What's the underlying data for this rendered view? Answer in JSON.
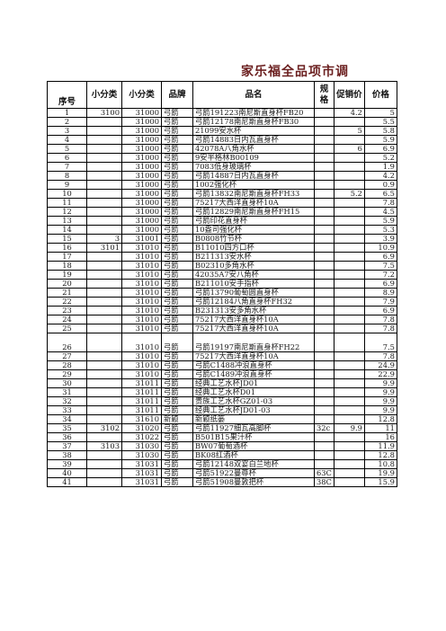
{
  "title": "家乐福全品项市调",
  "headers": {
    "seq": "序号",
    "sub1": "小分类",
    "sub2": "小分类",
    "brand": "品牌",
    "name": "品名",
    "spec": "规格",
    "promo": "促销价",
    "price": "价格"
  },
  "rows": [
    {
      "seq": "1",
      "c1": "3100",
      "c2": "31000",
      "brand": "弓箭",
      "name": "弓箭191223南尼斯直身杯FB20",
      "spec": "",
      "promo": "4.2",
      "price": "5"
    },
    {
      "seq": "2",
      "c1": "",
      "c2": "31000",
      "brand": "弓箭",
      "name": "弓箭12178南尼斯直身杯FB30",
      "spec": "",
      "promo": "",
      "price": "5.5"
    },
    {
      "seq": "3",
      "c1": "",
      "c2": "31000",
      "brand": "弓箭",
      "name": "21099安水杯",
      "spec": "",
      "promo": "5",
      "price": "5.8"
    },
    {
      "seq": "4",
      "c1": "",
      "c2": "31000",
      "brand": "弓箭",
      "name": "弓箭14883日内瓦直身杯",
      "spec": "",
      "promo": "",
      "price": "5.9"
    },
    {
      "seq": "5",
      "c1": "",
      "c2": "31000",
      "brand": "弓箭",
      "name": "42078A八角水杯",
      "spec": "",
      "promo": "6",
      "price": "6.9"
    },
    {
      "seq": "6",
      "c1": "",
      "c2": "31000",
      "brand": "弓箭",
      "name": "9安半格林B00109",
      "spec": "",
      "promo": "",
      "price": "5.2"
    },
    {
      "seq": "7",
      "c1": "",
      "c2": "31000",
      "brand": "弓箭",
      "name": "7083低身玻璃杯",
      "spec": "",
      "promo": "",
      "price": "1.9"
    },
    {
      "seq": "8",
      "c1": "",
      "c2": "31000",
      "brand": "弓箭",
      "name": "弓箭14887日内瓦直身杯",
      "spec": "",
      "promo": "",
      "price": "4.2"
    },
    {
      "seq": "9",
      "c1": "",
      "c2": "31000",
      "brand": "弓箭",
      "name": "1002强化杯",
      "spec": "",
      "promo": "",
      "price": "0.9"
    },
    {
      "seq": "10",
      "c1": "",
      "c2": "31000",
      "brand": "弓箭",
      "name": "弓箭13832南尼斯直身杯FH33",
      "spec": "",
      "promo": "5.2",
      "price": "6.5"
    },
    {
      "seq": "11",
      "c1": "",
      "c2": "31000",
      "brand": "弓箭",
      "name": "75217大西洋直身杯10A",
      "spec": "",
      "promo": "",
      "price": "7.8"
    },
    {
      "seq": "12",
      "c1": "",
      "c2": "31000",
      "brand": "弓箭",
      "name": "弓箭12829南尼斯直身杯FH15",
      "spec": "",
      "promo": "",
      "price": "4.5"
    },
    {
      "seq": "13",
      "c1": "",
      "c2": "31000",
      "brand": "弓箭",
      "name": "弓箭印花直身杯",
      "spec": "",
      "promo": "",
      "price": "5.9"
    },
    {
      "seq": "14",
      "c1": "",
      "c2": "31000",
      "brand": "弓箭",
      "name": "10盎司强化杯",
      "spec": "",
      "promo": "",
      "price": "5.3"
    },
    {
      "seq": "15",
      "c1": "3",
      "c2": "31001",
      "brand": "弓箭",
      "name": "B0808竹节杯",
      "spec": "",
      "promo": "",
      "price": "3.9"
    },
    {
      "seq": "16",
      "c1": "3101",
      "c2": "31010",
      "brand": "弓箭",
      "name": "B11010四方口杯",
      "spec": "",
      "promo": "",
      "price": "10.9"
    },
    {
      "seq": "17",
      "c1": "",
      "c2": "31010",
      "brand": "弓箭",
      "name": "B211313安水杯",
      "spec": "",
      "promo": "",
      "price": "6.9"
    },
    {
      "seq": "18",
      "c1": "",
      "c2": "31010",
      "brand": "弓箭",
      "name": "B02310多角水杯",
      "spec": "",
      "promo": "",
      "price": "7.5"
    },
    {
      "seq": "19",
      "c1": "",
      "c2": "31010",
      "brand": "弓箭",
      "name": "42035A7安八角杯",
      "spec": "",
      "promo": "",
      "price": "7.2"
    },
    {
      "seq": "20",
      "c1": "",
      "c2": "31010",
      "brand": "弓箭",
      "name": "B211010安手指杯",
      "spec": "",
      "promo": "",
      "price": "6.9"
    },
    {
      "seq": "21",
      "c1": "",
      "c2": "31010",
      "brand": "弓箭",
      "name": "弓箭13790葡萄圆直身杯",
      "spec": "",
      "promo": "",
      "price": "8.9"
    },
    {
      "seq": "22",
      "c1": "",
      "c2": "31010",
      "brand": "弓箭",
      "name": "弓箭12184八角直身杯FH32",
      "spec": "",
      "promo": "",
      "price": "7.9"
    },
    {
      "seq": "23",
      "c1": "",
      "c2": "31010",
      "brand": "弓箭",
      "name": "B231313安多角水杯",
      "spec": "",
      "promo": "",
      "price": "6.9"
    },
    {
      "seq": "24",
      "c1": "",
      "c2": "31010",
      "brand": "弓箭",
      "name": "75217大西洋直身杯10A",
      "spec": "",
      "promo": "",
      "price": "7.8"
    },
    {
      "seq": "25",
      "c1": "",
      "c2": "31010",
      "brand": "弓箭",
      "name": "75217大西洋直身杯10A",
      "spec": "",
      "promo": "",
      "price": "7.8"
    },
    {
      "seq": "26",
      "c1": "",
      "c2": "31010",
      "brand": "弓箭",
      "name": "弓箭19197南尼斯直身杯FH22",
      "spec": "",
      "promo": "",
      "price": "7.5"
    },
    {
      "seq": "27",
      "c1": "",
      "c2": "31010",
      "brand": "弓箭",
      "name": "75217大西洋直身杯10A",
      "spec": "",
      "promo": "",
      "price": "7.8"
    },
    {
      "seq": "28",
      "c1": "",
      "c2": "31010",
      "brand": "弓箭",
      "name": "弓箭C1488冲浪直身杯",
      "spec": "",
      "promo": "",
      "price": "24.9"
    },
    {
      "seq": "29",
      "c1": "",
      "c2": "31010",
      "brand": "弓箭",
      "name": "弓箭C1489冲浪直身杯",
      "spec": "",
      "promo": "",
      "price": "22.9"
    },
    {
      "seq": "30",
      "c1": "",
      "c2": "31011",
      "brand": "弓箭",
      "name": "经典工艺水杯JD01",
      "spec": "",
      "promo": "",
      "price": "9.9"
    },
    {
      "seq": "31",
      "c1": "",
      "c2": "31011",
      "brand": "弓箭",
      "name": "经典工艺水杯D01",
      "spec": "",
      "promo": "",
      "price": "9.9"
    },
    {
      "seq": "32",
      "c1": "",
      "c2": "31011",
      "brand": "弓箭",
      "name": "贵族工艺水杯GZ01-03",
      "spec": "",
      "promo": "",
      "price": "9.9"
    },
    {
      "seq": "33",
      "c1": "",
      "c2": "31011",
      "brand": "弓箭",
      "name": "经典工艺水杯JD01-03",
      "spec": "",
      "promo": "",
      "price": "9.9"
    },
    {
      "seq": "34",
      "c1": "",
      "c2": "31610",
      "brand": "新颖",
      "name": "新颖纸篓",
      "spec": "",
      "promo": "",
      "price": "12.8"
    },
    {
      "seq": "35",
      "c1": "3102",
      "c2": "31020",
      "brand": "弓箭",
      "name": "弓箭11927细瓦高脚杯",
      "spec": "32c",
      "promo": "9.9",
      "price": "11"
    },
    {
      "seq": "36",
      "c1": "",
      "c2": "31022",
      "brand": "弓箭",
      "name": "B501B15果汁杯",
      "spec": "",
      "promo": "",
      "price": "16"
    },
    {
      "seq": "37",
      "c1": "3103",
      "c2": "31030",
      "brand": "弓箭",
      "name": "BW07葡萄酒杯",
      "spec": "",
      "promo": "",
      "price": "11.9"
    },
    {
      "seq": "38",
      "c1": "",
      "c2": "31030",
      "brand": "弓箭",
      "name": "BK08红酒杯",
      "spec": "",
      "promo": "",
      "price": "12.8"
    },
    {
      "seq": "39",
      "c1": "",
      "c2": "31031",
      "brand": "弓箭",
      "name": "弓箭12148双宴白兰地杯",
      "spec": "",
      "promo": "",
      "price": "10.8"
    },
    {
      "seq": "40",
      "c1": "",
      "c2": "31031",
      "brand": "弓箭",
      "name": "弓箭51922曼尊杯",
      "spec": "63C",
      "promo": "",
      "price": "19.9"
    },
    {
      "seq": "41",
      "c1": "",
      "c2": "31031",
      "brand": "弓箭",
      "name": "弓箭51908曼敦把杯",
      "spec": "38C",
      "promo": "",
      "price": "15.9"
    }
  ]
}
